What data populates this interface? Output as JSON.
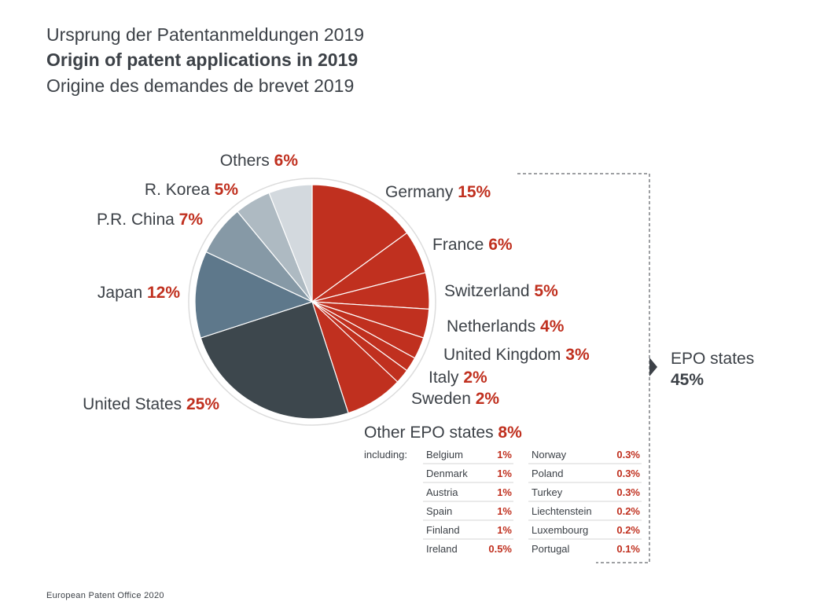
{
  "titles": {
    "de": "Ursprung der Patentanmeldungen 2019",
    "en": "Origin of patent applications in 2019",
    "fr": "Origine des demandes de brevet 2019"
  },
  "chart_data": {
    "type": "pie",
    "unit": "%",
    "colors": {
      "epo": "#c0301f",
      "accent": "#c0301f",
      "text": "#3c4147"
    },
    "slices": [
      {
        "name": "Germany",
        "value": 15,
        "value_label": "15%",
        "color": "#c0301f"
      },
      {
        "name": "France",
        "value": 6,
        "value_label": "6%",
        "color": "#c0301f"
      },
      {
        "name": "Switzerland",
        "value": 5,
        "value_label": "5%",
        "color": "#c0301f"
      },
      {
        "name": "Netherlands",
        "value": 4,
        "value_label": "4%",
        "color": "#c0301f"
      },
      {
        "name": "United Kingdom",
        "value": 3,
        "value_label": "3%",
        "color": "#c0301f"
      },
      {
        "name": "Italy",
        "value": 2,
        "value_label": "2%",
        "color": "#c0301f"
      },
      {
        "name": "Sweden",
        "value": 2,
        "value_label": "2%",
        "color": "#c0301f"
      },
      {
        "name": "Other EPO states",
        "value": 8,
        "value_label": "8%",
        "color": "#c0301f"
      },
      {
        "name": "United States",
        "value": 25,
        "value_label": "25%",
        "color": "#3d474d"
      },
      {
        "name": "Japan",
        "value": 12,
        "value_label": "12%",
        "color": "#5e788b"
      },
      {
        "name": "P.R. China",
        "value": 7,
        "value_label": "7%",
        "color": "#8699a6"
      },
      {
        "name": "R. Korea",
        "value": 5,
        "value_label": "5%",
        "color": "#aebac2"
      },
      {
        "name": "Others",
        "value": 6,
        "value_label": "6%",
        "color": "#d3d9de"
      }
    ],
    "epo_group": {
      "label": "EPO states",
      "value": 45,
      "value_label": "45%"
    },
    "breakdown": {
      "intro": "including:",
      "left": [
        {
          "name": "Belgium",
          "value_label": "1%"
        },
        {
          "name": "Denmark",
          "value_label": "1%"
        },
        {
          "name": "Austria",
          "value_label": "1%"
        },
        {
          "name": "Spain",
          "value_label": "1%"
        },
        {
          "name": "Finland",
          "value_label": "1%"
        },
        {
          "name": "Ireland",
          "value_label": "0.5%"
        }
      ],
      "right": [
        {
          "name": "Norway",
          "value_label": "0.3%"
        },
        {
          "name": "Poland",
          "value_label": "0.3%"
        },
        {
          "name": "Turkey",
          "value_label": "0.3%"
        },
        {
          "name": "Liechtenstein",
          "value_label": "0.2%"
        },
        {
          "name": "Luxembourg",
          "value_label": "0.2%"
        },
        {
          "name": "Portugal",
          "value_label": "0.1%"
        }
      ]
    }
  },
  "footer": "European Patent Office 2020"
}
